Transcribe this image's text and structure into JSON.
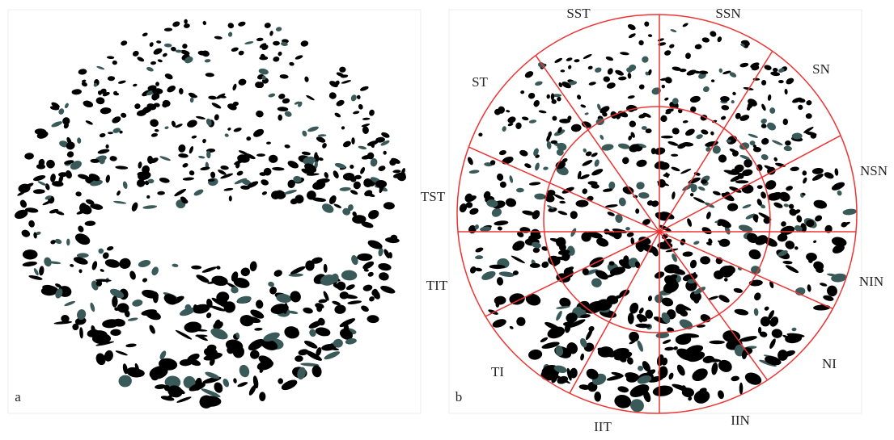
{
  "panels": [
    {
      "label": "a"
    },
    {
      "label": "b",
      "sectors": [
        "SST",
        "SSN",
        "SN",
        "NSN",
        "NIN",
        "NI",
        "IIN",
        "IIT",
        "TI",
        "TIT",
        "TST",
        "ST"
      ]
    }
  ]
}
